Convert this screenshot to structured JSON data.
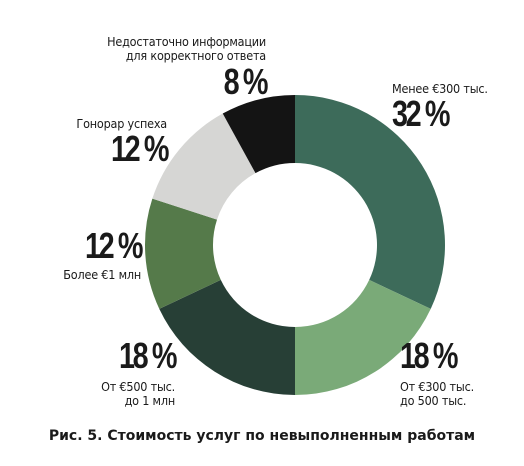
{
  "chart_data": {
    "type": "pie",
    "title": "Рис. 5. Стоимость услуг по невыполненным работам",
    "donut": true,
    "slices": [
      {
        "label": "Менее €300 тыс.",
        "value": 32,
        "value_label": "32 %",
        "color": "#3d6b5a"
      },
      {
        "label": "От €300 тыс. до 500 тыс.",
        "value": 18,
        "value_label": "18 %",
        "color": "#7aaa78"
      },
      {
        "label": "От €500 тыс. до 1 млн",
        "value": 18,
        "value_label": "18 %",
        "color": "#273f36"
      },
      {
        "label": "Более €1 млн",
        "value": 12,
        "value_label": "12 %",
        "color": "#557a4a"
      },
      {
        "label": "Гонорар успеха",
        "value": 12,
        "value_label": "12 %",
        "color": "#d6d6d4"
      },
      {
        "label": "Недостаточно информации для корректного ответа",
        "value": 8,
        "value_label": "8 %",
        "color": "#141414"
      }
    ]
  },
  "labels": {
    "s0": {
      "line1": "Менее €300 тыс.",
      "pct": "32 %"
    },
    "s1": {
      "pct": "18 %",
      "line1": "От €300 тыс.",
      "line2": "до 500 тыс."
    },
    "s2": {
      "pct": "18 %",
      "line1": "От €500 тыс.",
      "line2": "до 1 млн"
    },
    "s3": {
      "pct": "12 %",
      "line1": "Более €1 млн"
    },
    "s4": {
      "line1": "Гонорар успеха",
      "pct": "12 %"
    },
    "s5": {
      "line1": "Недостаточно информации",
      "line2": "для корректного ответа",
      "pct": "8 %"
    }
  }
}
